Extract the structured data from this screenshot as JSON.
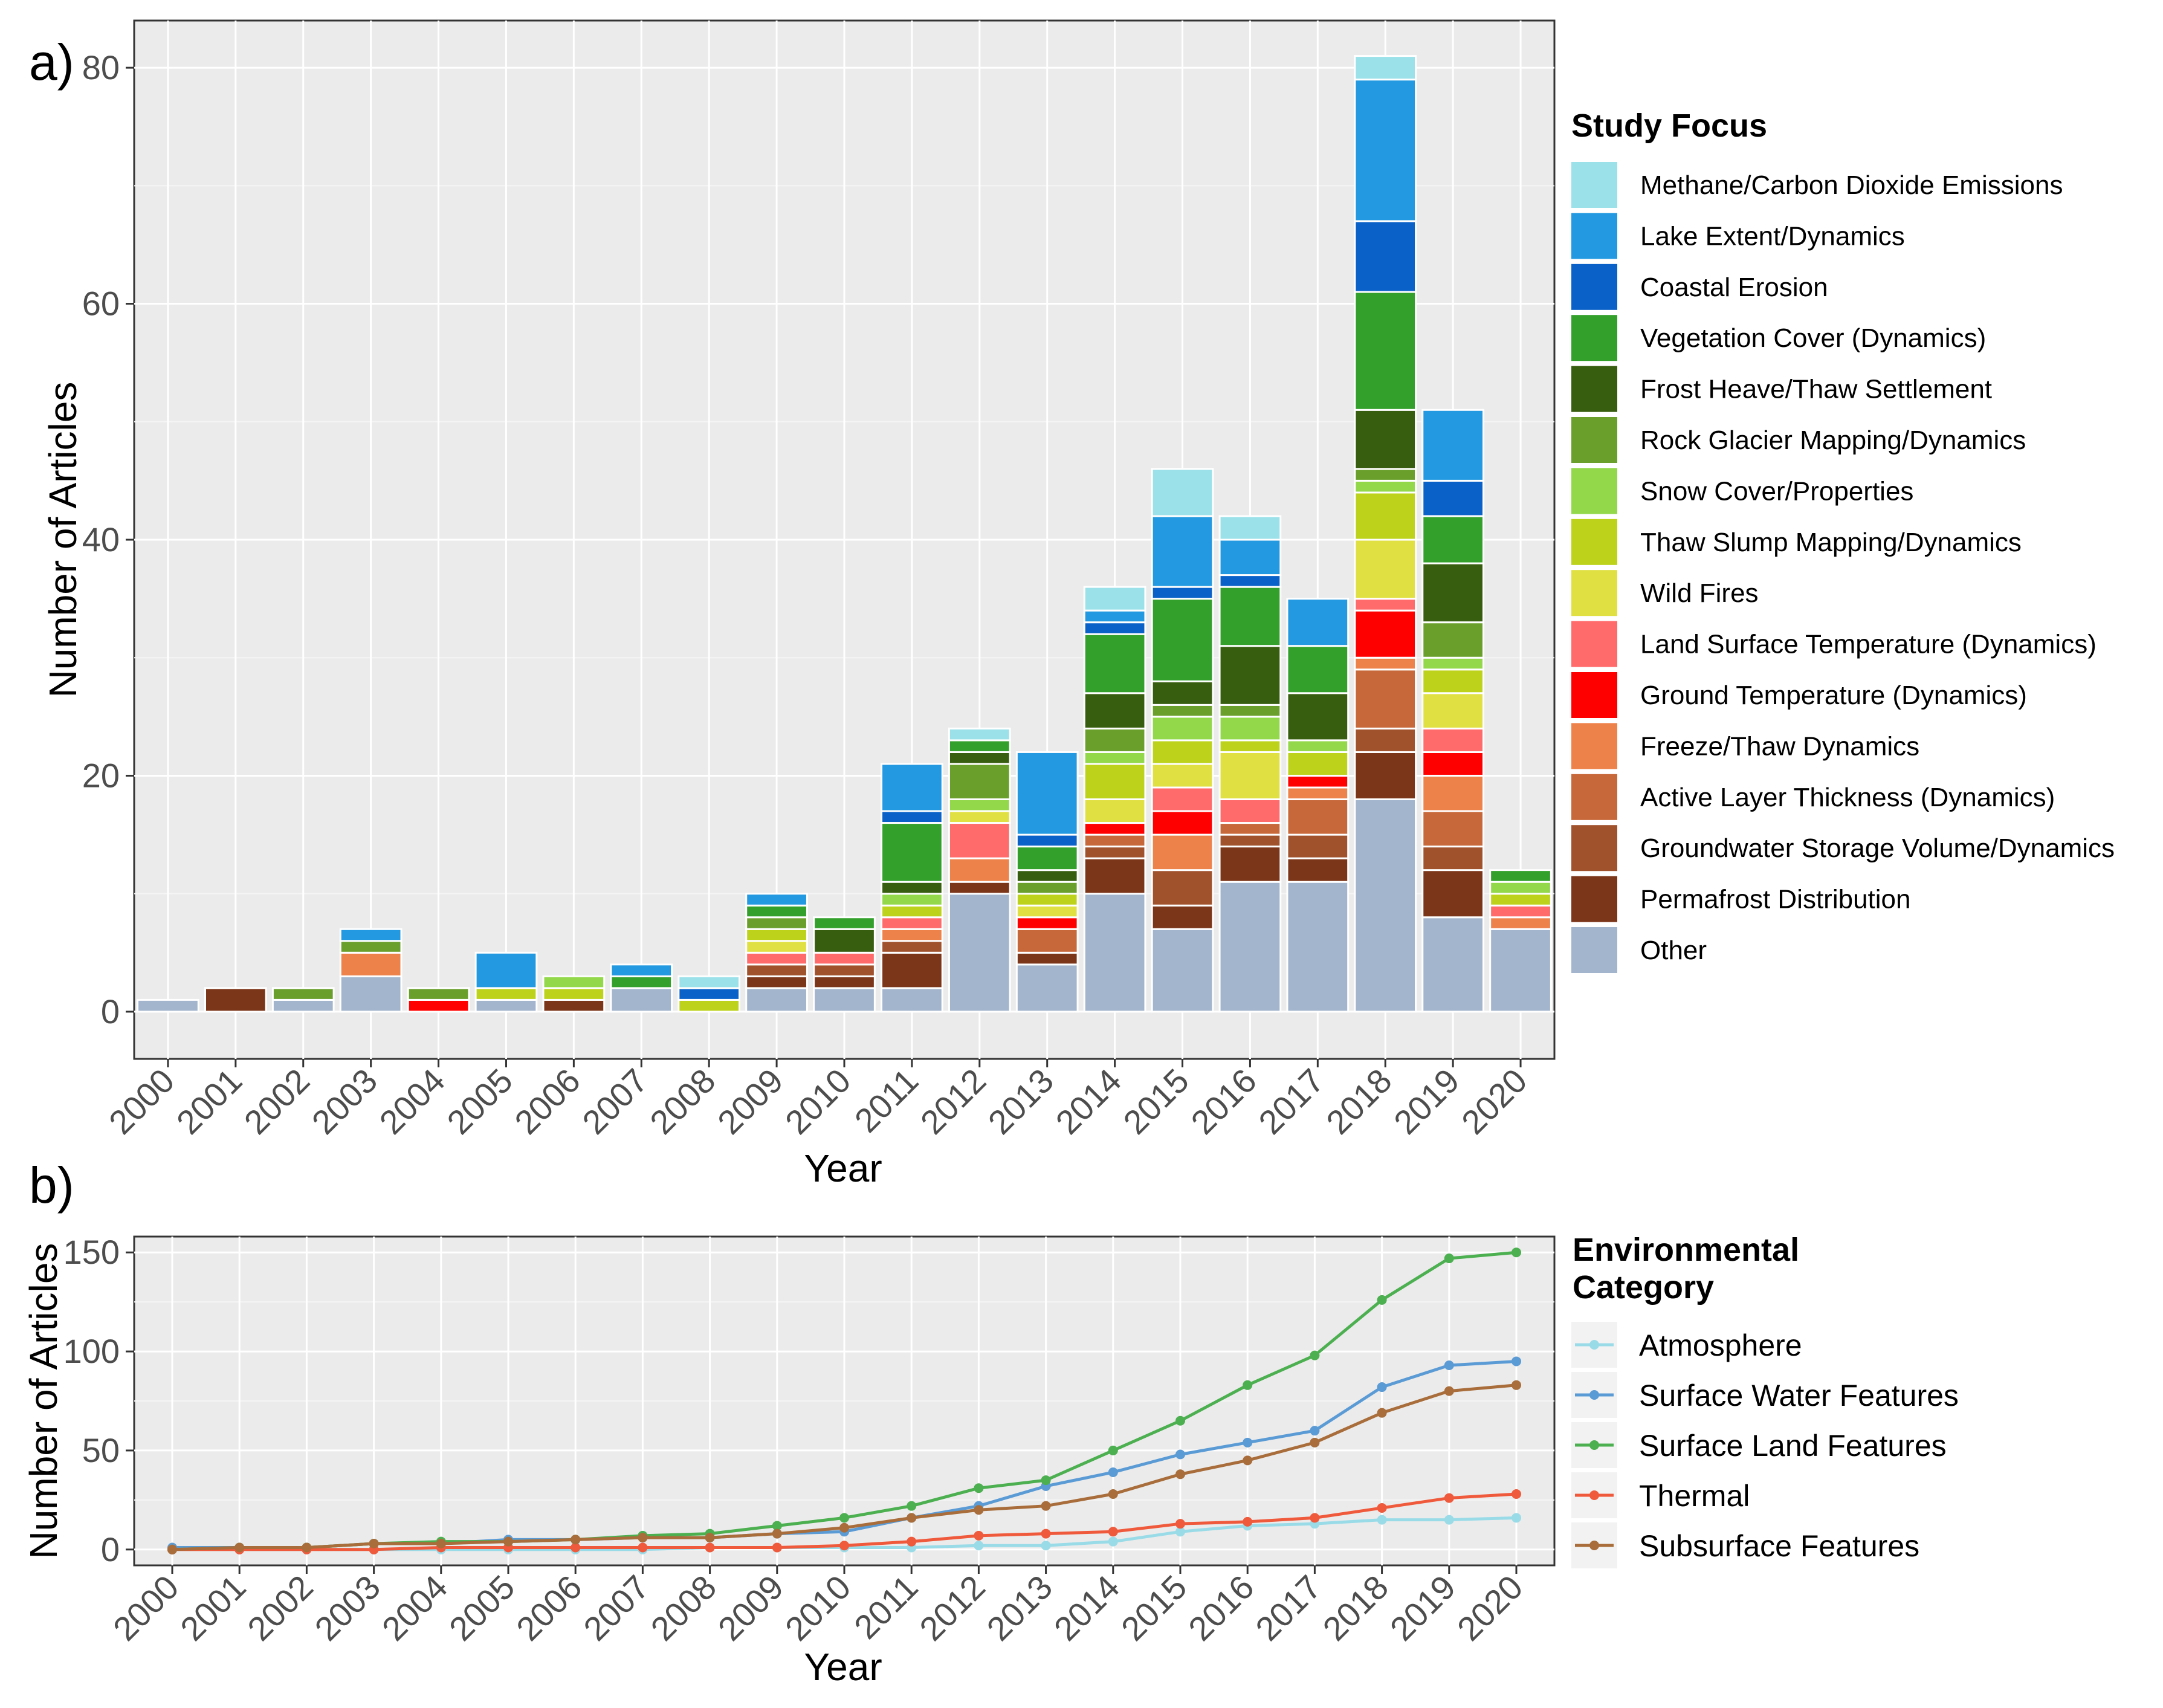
{
  "chart_data": [
    {
      "type": "bar",
      "panel_label": "a)",
      "stacked": true,
      "xlabel": "Year",
      "ylabel": "Number of Articles",
      "ylim": [
        0,
        85
      ],
      "yticks": [
        0,
        20,
        40,
        60,
        80
      ],
      "categories": [
        "2000",
        "2001",
        "2002",
        "2003",
        "2004",
        "2005",
        "2006",
        "2007",
        "2008",
        "2009",
        "2010",
        "2011",
        "2012",
        "2013",
        "2014",
        "2015",
        "2016",
        "2017",
        "2018",
        "2019",
        "2020"
      ],
      "legend_title": "Study Focus",
      "legend_position": "right",
      "series": [
        {
          "name": "Other",
          "color": "#A2B5CD",
          "values": [
            1,
            0,
            1,
            3,
            0,
            1,
            0,
            2,
            0,
            2,
            2,
            2,
            10,
            4,
            10,
            7,
            11,
            11,
            18,
            8,
            7
          ]
        },
        {
          "name": "Permafrost Distribution",
          "color": "#7B3519",
          "values": [
            0,
            2,
            0,
            0,
            0,
            0,
            1,
            0,
            0,
            1,
            1,
            3,
            1,
            1,
            3,
            2,
            3,
            2,
            4,
            4,
            0
          ]
        },
        {
          "name": "Groundwater Storage Volume/Dynamics",
          "color": "#A0522D",
          "values": [
            0,
            0,
            0,
            0,
            0,
            0,
            0,
            0,
            0,
            1,
            1,
            1,
            0,
            0,
            1,
            3,
            1,
            2,
            2,
            2,
            0
          ]
        },
        {
          "name": "Active Layer Thickness (Dynamics)",
          "color": "#C7683A",
          "values": [
            0,
            0,
            0,
            0,
            0,
            0,
            0,
            0,
            0,
            0,
            0,
            0,
            0,
            2,
            1,
            0,
            1,
            3,
            5,
            3,
            0
          ]
        },
        {
          "name": "Freeze/Thaw Dynamics",
          "color": "#EE824B",
          "values": [
            0,
            0,
            0,
            2,
            0,
            0,
            0,
            0,
            0,
            0,
            0,
            1,
            2,
            0,
            0,
            3,
            0,
            1,
            1,
            3,
            1
          ]
        },
        {
          "name": "Ground Temperature (Dynamics)",
          "color": "#FF0000",
          "values": [
            0,
            0,
            0,
            0,
            1,
            0,
            0,
            0,
            0,
            0,
            0,
            0,
            0,
            1,
            1,
            2,
            0,
            1,
            4,
            2,
            0
          ]
        },
        {
          "name": "Land Surface Temperature (Dynamics)",
          "color": "#FF6A6A",
          "values": [
            0,
            0,
            0,
            0,
            0,
            0,
            0,
            0,
            0,
            1,
            1,
            1,
            3,
            0,
            0,
            2,
            2,
            0,
            1,
            2,
            1
          ]
        },
        {
          "name": "Wild Fires",
          "color": "#E0E043",
          "values": [
            0,
            0,
            0,
            0,
            0,
            0,
            0,
            0,
            0,
            1,
            0,
            0,
            1,
            1,
            2,
            2,
            4,
            0,
            5,
            3,
            0
          ]
        },
        {
          "name": "Thaw Slump Mapping/Dynamics",
          "color": "#BCD21B",
          "values": [
            0,
            0,
            0,
            0,
            0,
            1,
            1,
            0,
            1,
            1,
            0,
            1,
            0,
            1,
            3,
            2,
            1,
            2,
            4,
            2,
            1
          ]
        },
        {
          "name": "Snow Cover/Properties",
          "color": "#92D84A",
          "values": [
            0,
            0,
            0,
            0,
            0,
            0,
            1,
            0,
            0,
            0,
            0,
            1,
            1,
            0,
            1,
            2,
            2,
            1,
            1,
            1,
            1
          ]
        },
        {
          "name": "Rock Glacier Mapping/Dynamics",
          "color": "#6A9F2C",
          "values": [
            0,
            0,
            1,
            1,
            1,
            0,
            0,
            0,
            0,
            1,
            0,
            0,
            3,
            1,
            2,
            1,
            1,
            0,
            1,
            3,
            0
          ]
        },
        {
          "name": "Frost Heave/Thaw Settlement",
          "color": "#375E0F",
          "values": [
            0,
            0,
            0,
            0,
            0,
            0,
            0,
            0,
            0,
            0,
            2,
            1,
            1,
            1,
            3,
            2,
            5,
            4,
            5,
            5,
            0
          ]
        },
        {
          "name": "Vegetation Cover (Dynamics)",
          "color": "#33A02C",
          "values": [
            0,
            0,
            0,
            0,
            0,
            0,
            0,
            1,
            0,
            1,
            1,
            5,
            1,
            2,
            5,
            7,
            5,
            4,
            10,
            4,
            1
          ]
        },
        {
          "name": "Coastal Erosion",
          "color": "#0A62C8",
          "values": [
            0,
            0,
            0,
            0,
            0,
            0,
            0,
            0,
            1,
            0,
            0,
            1,
            0,
            1,
            1,
            1,
            1,
            0,
            6,
            3,
            0
          ]
        },
        {
          "name": "Lake Extent/Dynamics",
          "color": "#2299E0",
          "values": [
            0,
            0,
            0,
            1,
            0,
            3,
            0,
            1,
            0,
            1,
            0,
            4,
            0,
            7,
            1,
            6,
            3,
            4,
            12,
            6,
            0
          ]
        },
        {
          "name": "Methane/Carbon Dioxide Emissions",
          "color": "#9BE1EA",
          "values": [
            0,
            0,
            0,
            0,
            0,
            0,
            0,
            0,
            1,
            0,
            0,
            0,
            1,
            0,
            2,
            4,
            2,
            0,
            2,
            0,
            0
          ]
        }
      ]
    },
    {
      "type": "line",
      "panel_label": "b)",
      "xlabel": "Year",
      "ylabel": "Number of Articles",
      "ylim": [
        -8,
        158
      ],
      "yticks": [
        0,
        50,
        100,
        150
      ],
      "x": [
        "2000",
        "2001",
        "2002",
        "2003",
        "2004",
        "2005",
        "2006",
        "2007",
        "2008",
        "2009",
        "2010",
        "2011",
        "2012",
        "2013",
        "2014",
        "2015",
        "2016",
        "2017",
        "2018",
        "2019",
        "2020"
      ],
      "legend_title": "Environmental Category",
      "legend_title_lines": [
        "Environmental",
        "Category"
      ],
      "legend_position": "right",
      "series": [
        {
          "name": "Atmosphere",
          "color": "#9ADBE8",
          "values": [
            0,
            0,
            0,
            0,
            0,
            0,
            0,
            0,
            1,
            1,
            1,
            1,
            2,
            2,
            4,
            9,
            12,
            13,
            15,
            15,
            16
          ]
        },
        {
          "name": "Surface Water Features",
          "color": "#5B9BD5",
          "values": [
            1,
            1,
            1,
            3,
            3,
            5,
            5,
            6,
            6,
            8,
            9,
            16,
            22,
            32,
            39,
            48,
            54,
            60,
            82,
            93,
            95
          ]
        },
        {
          "name": "Surface Land Features",
          "color": "#4CAF50",
          "values": [
            0,
            1,
            1,
            3,
            4,
            4,
            5,
            7,
            8,
            12,
            16,
            22,
            31,
            35,
            50,
            65,
            83,
            98,
            126,
            147,
            150
          ]
        },
        {
          "name": "Thermal",
          "color": "#F05A3C",
          "values": [
            0,
            0,
            0,
            0,
            1,
            1,
            1,
            1,
            1,
            1,
            2,
            4,
            7,
            8,
            9,
            13,
            14,
            16,
            21,
            26,
            28
          ]
        },
        {
          "name": "Subsurface Features",
          "color": "#A86D3A",
          "values": [
            0,
            1,
            1,
            3,
            3,
            4,
            5,
            6,
            6,
            8,
            11,
            16,
            20,
            22,
            28,
            38,
            45,
            54,
            69,
            80,
            83
          ]
        }
      ]
    }
  ]
}
